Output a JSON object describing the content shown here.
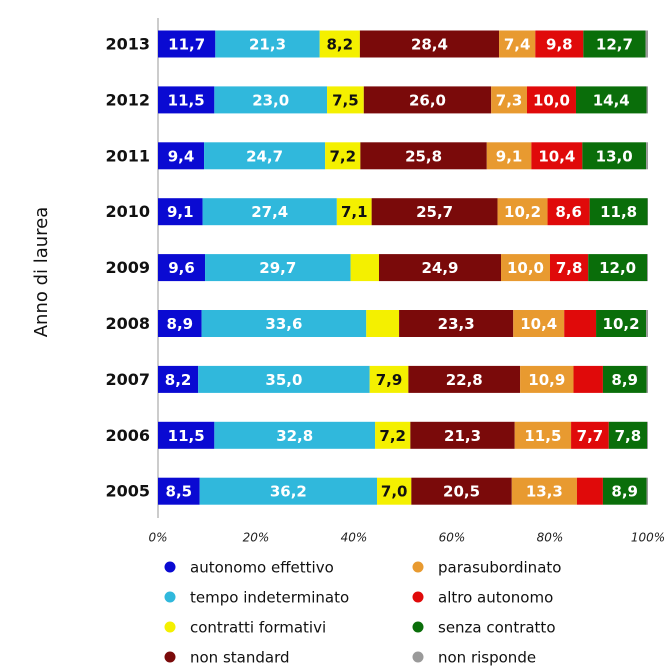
{
  "chart_data": {
    "type": "stacked-barh",
    "y_label": "Anno di laurea",
    "categories": [
      "2013",
      "2012",
      "2011",
      "2010",
      "2009",
      "2008",
      "2007",
      "2006",
      "2005"
    ],
    "xlim": [
      0,
      100
    ],
    "xticks": [
      {
        "value": 0,
        "label": "0%"
      },
      {
        "value": 20,
        "label": "20%"
      },
      {
        "value": 40,
        "label": "40%"
      },
      {
        "value": 60,
        "label": "60%"
      },
      {
        "value": 80,
        "label": "80%"
      },
      {
        "value": 100,
        "label": "100%"
      }
    ],
    "series": [
      {
        "name": "autonomo effettivo",
        "color": "#0a0ad2",
        "values": [
          11.7,
          11.5,
          9.4,
          9.1,
          9.6,
          8.9,
          8.2,
          11.5,
          8.5
        ],
        "value_labels": [
          "11,7",
          "11,5",
          "9,4",
          "9,1",
          "9,6",
          "8,9",
          "8,2",
          "11,5",
          "8,5"
        ]
      },
      {
        "name": "tempo indeterminato",
        "color": "#30b8dc",
        "values": [
          21.3,
          23.0,
          24.7,
          27.4,
          29.7,
          33.6,
          35.0,
          32.8,
          36.2
        ],
        "value_labels": [
          "21,3",
          "23,0",
          "24,7",
          "27,4",
          "29,7",
          "33,6",
          "35,0",
          "32,8",
          "36,2"
        ]
      },
      {
        "name": "contratti formativi",
        "color": "#f4f000",
        "values": [
          8.2,
          7.5,
          7.2,
          7.1,
          5.8,
          6.7,
          7.9,
          7.2,
          7.0
        ],
        "value_labels": [
          "8,2",
          "7,5",
          "7,2",
          "7,1",
          null,
          null,
          "7,9",
          "7,2",
          "7,0"
        ]
      },
      {
        "name": "non standard",
        "color": "#7a0a0a",
        "values": [
          28.4,
          26.0,
          25.8,
          25.7,
          24.9,
          23.3,
          22.8,
          21.3,
          20.5
        ],
        "value_labels": [
          "28,4",
          "26,0",
          "25,8",
          "25,7",
          "24,9",
          "23,3",
          "22,8",
          "21,3",
          "20,5"
        ]
      },
      {
        "name": "parasubordinato",
        "color": "#e89a30",
        "values": [
          7.4,
          7.3,
          9.1,
          10.2,
          10.0,
          10.4,
          10.9,
          11.5,
          13.3
        ],
        "value_labels": [
          "7,4",
          "7,3",
          "9,1",
          "10,2",
          "10,0",
          "10,4",
          "10,9",
          "11,5",
          "13,3"
        ]
      },
      {
        "name": "altro autonomo",
        "color": "#e00a0a",
        "values": [
          9.8,
          10.0,
          10.4,
          8.6,
          7.8,
          6.5,
          6.0,
          7.7,
          5.3
        ],
        "value_labels": [
          "9,8",
          "10,0",
          "10,4",
          "8,6",
          "7,8",
          null,
          null,
          "7,7",
          null
        ]
      },
      {
        "name": "senza contratto",
        "color": "#0a6e0a",
        "values": [
          12.7,
          14.4,
          13.0,
          11.8,
          12.0,
          10.2,
          8.9,
          7.8,
          8.9
        ],
        "value_labels": [
          "12,7",
          "14,4",
          "13,0",
          "11,8",
          "12,0",
          "10,2",
          "8,9",
          "7,8",
          "8,9"
        ]
      },
      {
        "name": "non risponde",
        "color": "#9a9a9a",
        "values": [
          0.5,
          0.3,
          0.4,
          0.1,
          0.2,
          0.4,
          0.3,
          0.2,
          0.3
        ]
      }
    ]
  }
}
